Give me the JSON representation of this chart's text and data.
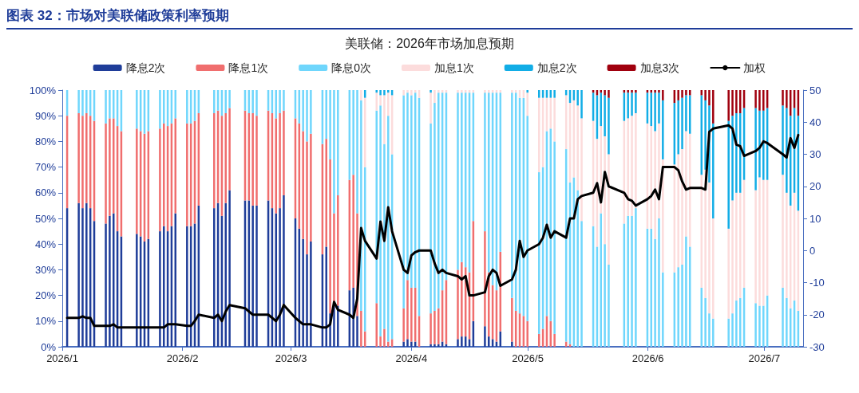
{
  "chart_data": {
    "type": "bar",
    "stacked": true,
    "title": "图表 32：市场对美联储政策利率预期",
    "subtitle": "美联储：2026年市场加息预期",
    "legend": "top",
    "x": [
      "2026-01-02",
      "2026-01-05",
      "2026-01-06",
      "2026-01-07",
      "2026-01-08",
      "2026-01-09",
      "2026-01-12",
      "2026-01-13",
      "2026-01-14",
      "2026-01-15",
      "2026-01-16",
      "2026-01-20",
      "2026-01-21",
      "2026-01-22",
      "2026-01-23",
      "2026-01-26",
      "2026-01-27",
      "2026-01-28",
      "2026-01-29",
      "2026-01-30",
      "2026-02-02",
      "2026-02-03",
      "2026-02-04",
      "2026-02-05",
      "2026-02-09",
      "2026-02-10",
      "2026-02-11",
      "2026-02-12",
      "2026-02-13",
      "2026-02-17",
      "2026-02-18",
      "2026-02-19",
      "2026-02-20",
      "2026-02-23",
      "2026-02-24",
      "2026-02-25",
      "2026-02-26",
      "2026-02-27",
      "2026-03-02",
      "2026-03-03",
      "2026-03-04",
      "2026-03-05",
      "2026-03-06",
      "2026-03-09",
      "2026-03-10",
      "2026-03-11",
      "2026-03-12",
      "2026-03-13",
      "2026-03-16",
      "2026-03-17",
      "2026-03-18",
      "2026-03-19",
      "2026-03-20",
      "2026-03-23",
      "2026-03-24",
      "2026-03-25",
      "2026-03-26",
      "2026-03-27",
      "2026-03-30",
      "2026-03-31",
      "2026-04-01",
      "2026-04-02",
      "2026-04-03",
      "2026-04-06",
      "2026-04-07",
      "2026-04-08",
      "2026-04-09",
      "2026-04-10",
      "2026-04-13",
      "2026-04-14",
      "2026-04-15",
      "2026-04-16",
      "2026-04-17",
      "2026-04-20",
      "2026-04-21",
      "2026-04-22",
      "2026-04-23",
      "2026-04-24",
      "2026-04-27",
      "2026-04-28",
      "2026-04-29",
      "2026-04-30",
      "2026-05-01",
      "2026-05-04",
      "2026-05-05",
      "2026-05-06",
      "2026-05-07",
      "2026-05-08",
      "2026-05-11",
      "2026-05-12",
      "2026-05-13",
      "2026-05-14",
      "2026-05-15",
      "2026-05-18",
      "2026-05-19",
      "2026-05-20",
      "2026-05-21",
      "2026-05-22",
      "2026-05-26",
      "2026-05-27",
      "2026-05-28",
      "2026-05-29",
      "2026-06-01",
      "2026-06-02",
      "2026-06-03",
      "2026-06-04",
      "2026-06-05",
      "2026-06-08",
      "2026-06-09",
      "2026-06-10",
      "2026-06-11",
      "2026-06-12",
      "2026-06-15",
      "2026-06-16",
      "2026-06-17",
      "2026-06-18",
      "2026-06-22",
      "2026-06-23",
      "2026-06-24",
      "2026-06-25",
      "2026-06-26",
      "2026-06-29",
      "2026-06-30",
      "2026-07-01",
      "2026-07-02",
      "2026-07-06",
      "2026-07-07",
      "2026-07-08",
      "2026-07-09",
      "2026-07-10"
    ],
    "xlim": [
      "2026-01-01",
      "2026-07-11"
    ],
    "xticks": [
      {
        "value": "2026-01-01",
        "label": "2026/1"
      },
      {
        "value": "2026-02-01",
        "label": "2026/2"
      },
      {
        "value": "2026-03-01",
        "label": "2026/3"
      },
      {
        "value": "2026-04-01",
        "label": "2026/4"
      },
      {
        "value": "2026-05-01",
        "label": "2026/5"
      },
      {
        "value": "2026-06-01",
        "label": "2026/6"
      },
      {
        "value": "2026-07-01",
        "label": "2026/7"
      }
    ],
    "ylim": [
      0,
      100
    ],
    "yticks": [
      {
        "value": 0,
        "label": "0%"
      },
      {
        "value": 10,
        "label": "10%"
      },
      {
        "value": 20,
        "label": "20%"
      },
      {
        "value": 30,
        "label": "30%"
      },
      {
        "value": 40,
        "label": "40%"
      },
      {
        "value": 50,
        "label": "50%"
      },
      {
        "value": 60,
        "label": "60%"
      },
      {
        "value": 70,
        "label": "70%"
      },
      {
        "value": 80,
        "label": "80%"
      },
      {
        "value": 90,
        "label": "90%"
      },
      {
        "value": 100,
        "label": "100%"
      }
    ],
    "y2lim": [
      -30,
      50
    ],
    "y2ticks": [
      -30,
      -20,
      -10,
      0,
      10,
      20,
      30,
      40,
      50
    ],
    "series": [
      {
        "name": "降息2次",
        "color": "#1f3d99",
        "values": [
          54,
          56,
          54,
          56,
          54,
          49,
          48,
          51,
          52,
          45,
          43,
          44,
          43,
          41,
          42,
          45,
          47,
          45,
          47,
          52,
          47,
          47,
          48,
          55,
          54,
          56,
          51,
          56,
          61,
          57,
          57,
          55,
          55,
          57,
          54,
          52,
          54,
          59,
          50,
          46,
          42,
          36,
          41,
          36,
          39,
          13,
          17,
          16,
          22,
          23,
          12,
          0,
          0,
          0,
          0,
          0,
          0,
          0,
          2,
          3,
          2,
          2,
          0,
          1,
          1,
          1,
          2,
          1,
          3,
          4,
          4,
          3,
          10,
          8,
          4,
          3,
          2,
          6,
          2,
          0,
          0,
          0,
          0,
          0,
          0,
          0,
          0,
          0,
          0,
          0,
          0,
          0,
          0,
          0,
          0,
          0,
          0,
          0,
          0,
          0,
          0,
          0,
          0,
          0,
          0,
          0,
          0,
          0,
          0,
          0,
          0,
          0,
          0,
          0,
          0,
          0,
          0,
          0,
          0,
          0,
          0,
          0,
          0,
          0,
          0,
          0,
          0,
          0,
          0,
          0
        ]
      },
      {
        "name": "降息1次",
        "color": "#f06e6e",
        "values": [
          36,
          35,
          36,
          35,
          36,
          39,
          39,
          38,
          37,
          41,
          41,
          41,
          41,
          42,
          42,
          40,
          40,
          41,
          40,
          37,
          40,
          40,
          40,
          36,
          37,
          36,
          39,
          35,
          32,
          35,
          34,
          36,
          35,
          35,
          37,
          37,
          37,
          33,
          39,
          41,
          42,
          44,
          42,
          43,
          42,
          60,
          35,
          43,
          43,
          44,
          40,
          14,
          6,
          17,
          4,
          7,
          2,
          3,
          13,
          23,
          21,
          21,
          12,
          12,
          13,
          14,
          20,
          25,
          27,
          29,
          27,
          26,
          39,
          37,
          25,
          21,
          20,
          31,
          17,
          14,
          13,
          12,
          10,
          5,
          7,
          12,
          10,
          5,
          2,
          1,
          0,
          0,
          0,
          0,
          0,
          0,
          0,
          0,
          0,
          0,
          0,
          0,
          0,
          0,
          0,
          0,
          0,
          0,
          0,
          0,
          0,
          0,
          0,
          0,
          0,
          0,
          0,
          0,
          0,
          0,
          0,
          0,
          0,
          0,
          0,
          0,
          0,
          0,
          0,
          0
        ]
      },
      {
        "name": "降息0次",
        "color": "#6fd6fc",
        "values": [
          10,
          9,
          10,
          9,
          10,
          12,
          13,
          11,
          11,
          14,
          16,
          15,
          16,
          17,
          16,
          15,
          13,
          14,
          13,
          11,
          13,
          13,
          12,
          9,
          9,
          8,
          10,
          9,
          7,
          8,
          9,
          9,
          10,
          8,
          9,
          11,
          9,
          8,
          11,
          13,
          16,
          20,
          17,
          21,
          19,
          27,
          48,
          41,
          35,
          33,
          48,
          82,
          64,
          75,
          90,
          72,
          88,
          72,
          83,
          73,
          75,
          76,
          85,
          74,
          81,
          84,
          77,
          73,
          69,
          66,
          68,
          70,
          50,
          54,
          70,
          75,
          77,
          62,
          80,
          85,
          84,
          85,
          80,
          63,
          63,
          72,
          75,
          75,
          75,
          63,
          66,
          61,
          49,
          47,
          39,
          52,
          40,
          32,
          48,
          51,
          51,
          54,
          46,
          46,
          42,
          50,
          29,
          29,
          31,
          32,
          43,
          39,
          23,
          19,
          13,
          11,
          11,
          13,
          18,
          19,
          23,
          17,
          16,
          16,
          20,
          23,
          19,
          15,
          18,
          14
        ]
      },
      {
        "name": "加息1次",
        "color": "#fcdcdc",
        "values": [
          0,
          0,
          0,
          0,
          0,
          0,
          0,
          0,
          0,
          0,
          0,
          0,
          0,
          0,
          0,
          0,
          0,
          0,
          0,
          0,
          0,
          0,
          0,
          0,
          0,
          0,
          0,
          0,
          0,
          0,
          0,
          0,
          0,
          0,
          0,
          0,
          0,
          0,
          0,
          0,
          0,
          0,
          0,
          0,
          0,
          0,
          0,
          0,
          0,
          0,
          0,
          4,
          27,
          7,
          4,
          19,
          9,
          23,
          2,
          1,
          2,
          1,
          3,
          12,
          5,
          1,
          1,
          1,
          1,
          1,
          1,
          1,
          1,
          1,
          1,
          1,
          1,
          1,
          1,
          1,
          3,
          3,
          9,
          29,
          27,
          13,
          12,
          17,
          21,
          31,
          30,
          33,
          40,
          41,
          42,
          34,
          42,
          43,
          40,
          38,
          39,
          37,
          41,
          40,
          42,
          37,
          44,
          42,
          44,
          45,
          41,
          44,
          44,
          50,
          51,
          39,
          35,
          44,
          42,
          41,
          42,
          44,
          50,
          49,
          45,
          44,
          41,
          40,
          42,
          39
        ]
      },
      {
        "name": "加息2次",
        "color": "#12ade6",
        "values": [
          0,
          0,
          0,
          0,
          0,
          0,
          0,
          0,
          0,
          0,
          0,
          0,
          0,
          0,
          0,
          0,
          0,
          0,
          0,
          0,
          0,
          0,
          0,
          0,
          0,
          0,
          0,
          0,
          0,
          0,
          0,
          0,
          0,
          0,
          0,
          0,
          0,
          0,
          0,
          0,
          0,
          0,
          0,
          0,
          0,
          0,
          0,
          0,
          0,
          0,
          0,
          0,
          3,
          1,
          2,
          2,
          1,
          2,
          0,
          0,
          0,
          0,
          0,
          1,
          0,
          0,
          0,
          0,
          0,
          0,
          0,
          0,
          0,
          0,
          0,
          0,
          0,
          0,
          0,
          0,
          0,
          0,
          1,
          3,
          3,
          3,
          3,
          3,
          2,
          5,
          4,
          6,
          11,
          11,
          17,
          13,
          16,
          22,
          11,
          10,
          9,
          8,
          12,
          13,
          15,
          12,
          23,
          24,
          21,
          20,
          14,
          15,
          31,
          27,
          30,
          37,
          42,
          33,
          31,
          31,
          28,
          32,
          26,
          27,
          28,
          27,
          33,
          35,
          33,
          37
        ]
      },
      {
        "name": "加息3次",
        "color": "#a0000e",
        "values": [
          0,
          0,
          0,
          0,
          0,
          0,
          0,
          0,
          0,
          0,
          0,
          0,
          0,
          0,
          0,
          0,
          0,
          0,
          0,
          0,
          0,
          0,
          0,
          0,
          0,
          0,
          0,
          0,
          0,
          0,
          0,
          0,
          0,
          0,
          0,
          0,
          0,
          0,
          0,
          0,
          0,
          0,
          0,
          0,
          0,
          0,
          0,
          0,
          0,
          0,
          0,
          0,
          0,
          0,
          0,
          0,
          0,
          0,
          0,
          0,
          0,
          0,
          0,
          0,
          0,
          0,
          0,
          0,
          0,
          0,
          0,
          0,
          0,
          0,
          0,
          0,
          0,
          0,
          0,
          0,
          0,
          0,
          0,
          0,
          0,
          0,
          0,
          0,
          0,
          0,
          0,
          0,
          0,
          1,
          2,
          1,
          2,
          3,
          1,
          1,
          1,
          1,
          1,
          1,
          1,
          1,
          4,
          5,
          4,
          3,
          2,
          2,
          2,
          4,
          6,
          13,
          12,
          10,
          9,
          9,
          7,
          7,
          8,
          8,
          7,
          6,
          7,
          10,
          7,
          10
        ]
      },
      {
        "name": "加权",
        "type": "line",
        "axis": "y2",
        "color": "#000000",
        "values": [
          -21,
          -21,
          -20.5,
          -21,
          -21,
          -23.5,
          -23.5,
          -23.5,
          -23,
          -24,
          -24,
          -24,
          -24,
          -24,
          -24,
          -24,
          -24,
          -23,
          -23,
          -23,
          -23.5,
          -23.5,
          -22,
          -20,
          -21,
          -20,
          -22,
          -19,
          -17,
          -18,
          -19,
          -20,
          -20,
          -20,
          -21,
          -22,
          -20,
          -17,
          -21,
          -22,
          -23,
          -23,
          -23,
          -24,
          -24,
          -23,
          -16,
          -18.5,
          -20,
          -21,
          -15,
          7,
          3,
          -2.5,
          9,
          3,
          13.5,
          6,
          -6,
          -7,
          -1.5,
          -0.5,
          0,
          0,
          -4,
          -7,
          -6,
          -7,
          -8,
          -9,
          -8,
          -14,
          -14,
          -13,
          -8,
          -6,
          -7,
          -11,
          -9,
          -6,
          3,
          -2,
          0,
          2,
          4,
          8,
          4,
          6,
          4,
          10,
          10,
          16,
          17,
          18,
          21,
          15,
          24.5,
          20,
          18,
          16,
          15.5,
          14,
          16,
          17,
          19,
          16,
          26,
          26,
          25,
          21.5,
          19,
          19.5,
          19.5,
          19,
          37,
          38,
          39,
          38,
          33,
          32.5,
          29.5,
          31,
          32,
          34,
          33.5,
          30,
          29,
          35,
          32,
          36
        ]
      }
    ]
  }
}
